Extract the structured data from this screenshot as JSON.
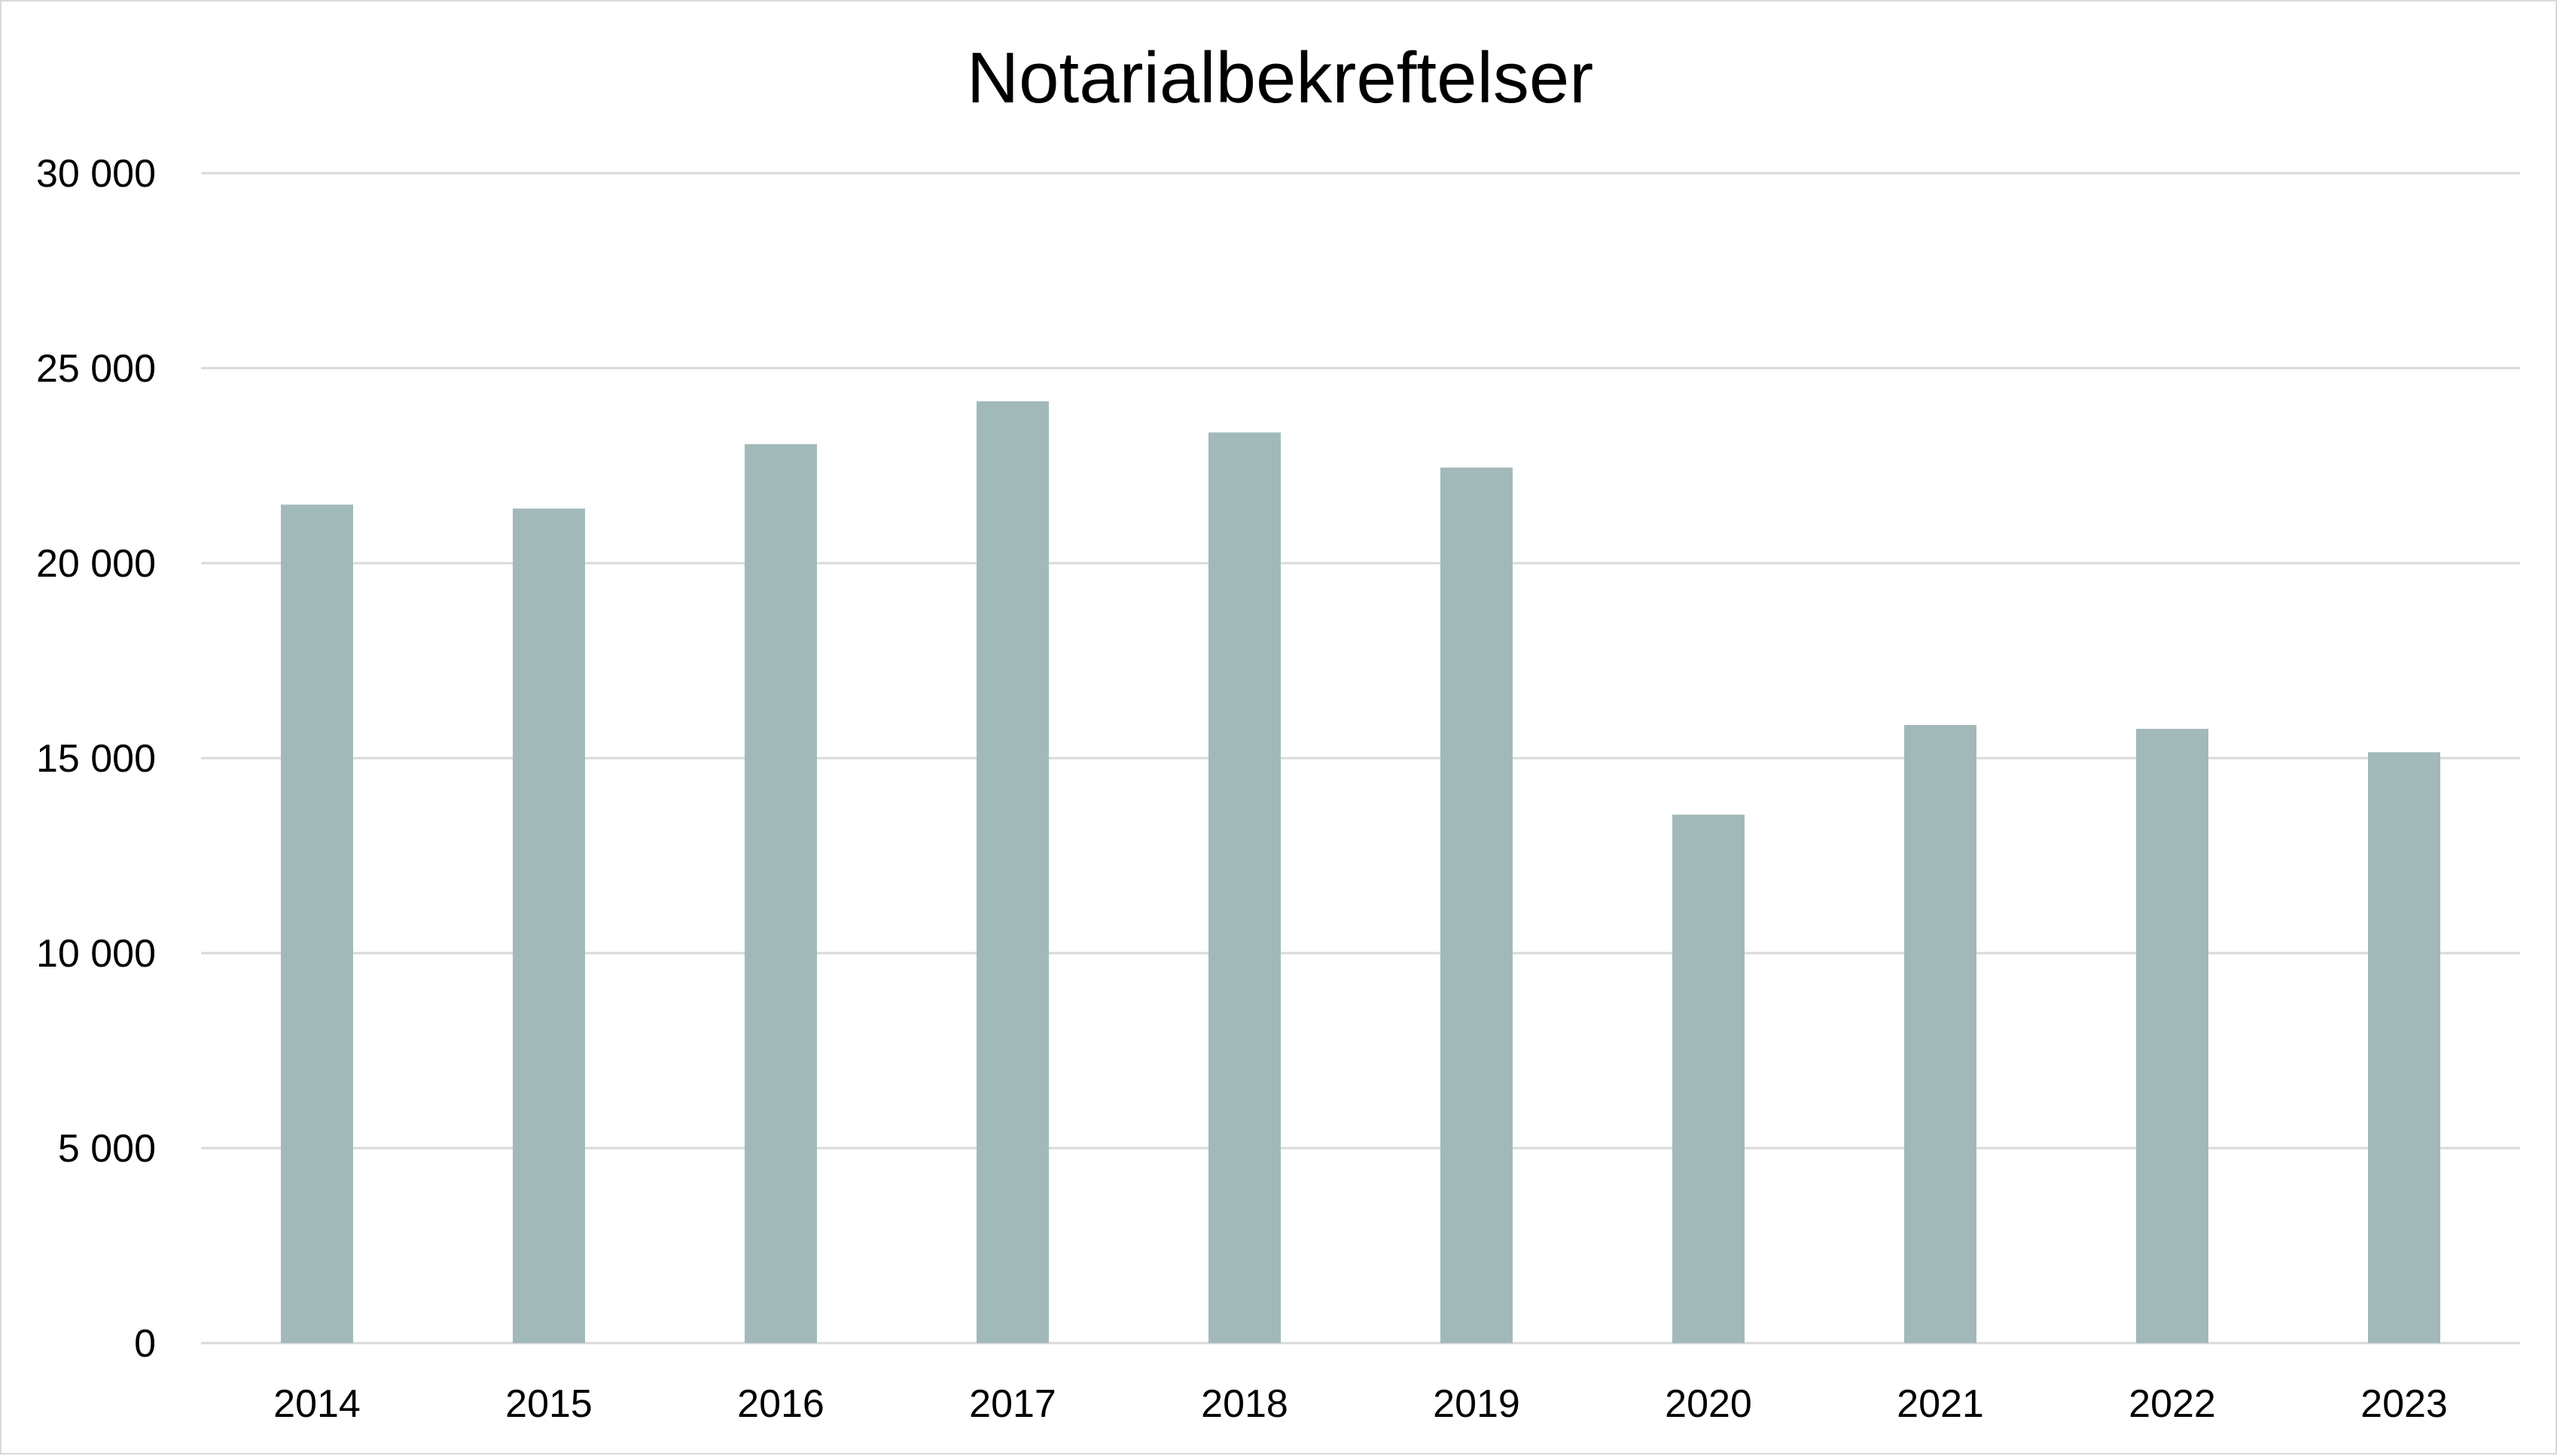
{
  "chart_data": {
    "type": "bar",
    "title": "Notarialbekreftelser",
    "xlabel": "",
    "ylabel": "",
    "categories": [
      "2014",
      "2015",
      "2016",
      "2017",
      "2018",
      "2019",
      "2020",
      "2021",
      "2022",
      "2023"
    ],
    "values": [
      21500,
      21400,
      23050,
      24150,
      23350,
      22450,
      13550,
      15850,
      15750,
      15150
    ],
    "ylim": [
      0,
      30000
    ],
    "yticks": [
      0,
      5000,
      10000,
      15000,
      20000,
      25000,
      30000
    ],
    "ytick_labels": [
      "0",
      "5 000",
      "10 000",
      "15 000",
      "20 000",
      "25 000",
      "30 000"
    ],
    "grid": true,
    "legend": "none",
    "bar_color": "#a2b9b9"
  }
}
